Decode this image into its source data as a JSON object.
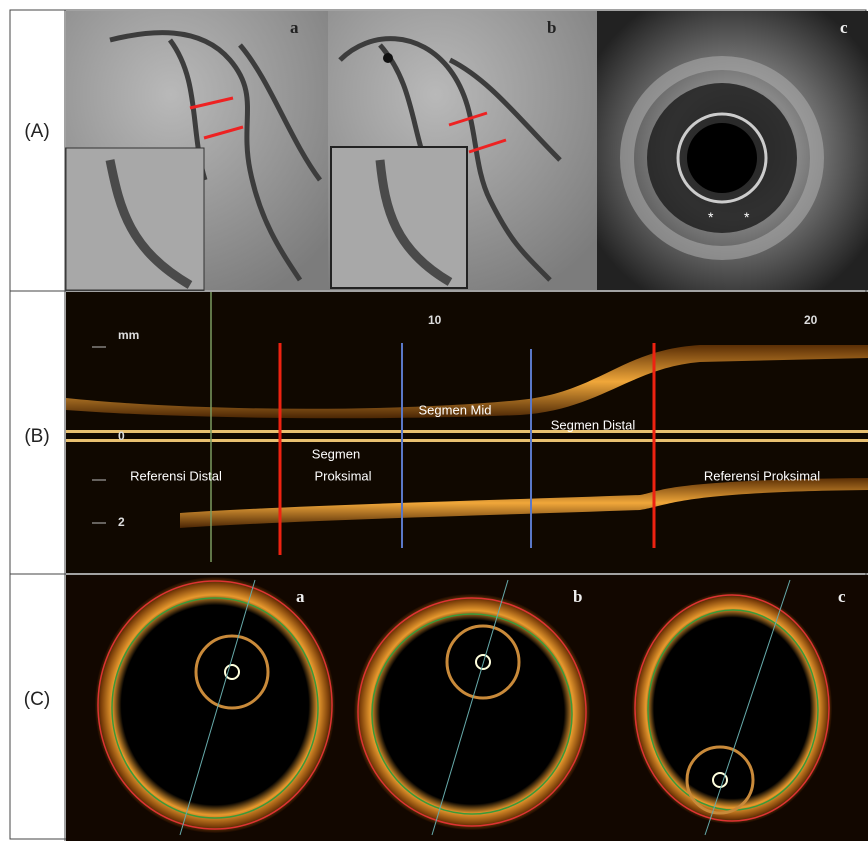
{
  "panels": [
    {
      "label": "(A)",
      "images": [
        "a",
        "b",
        "c"
      ]
    },
    {
      "label": "(B)",
      "scale": {
        "unit": "mm",
        "depth": [
          "0",
          "2"
        ],
        "length": [
          "10",
          "20"
        ]
      },
      "segments": [
        "Referensi Distal",
        [
          "Segmen",
          "Proksimal"
        ],
        "Segmen Mid",
        "Segmen Distal",
        "Referensi Proksimal"
      ]
    },
    {
      "label": "(C)",
      "images": [
        "a",
        "b",
        "c"
      ]
    }
  ]
}
